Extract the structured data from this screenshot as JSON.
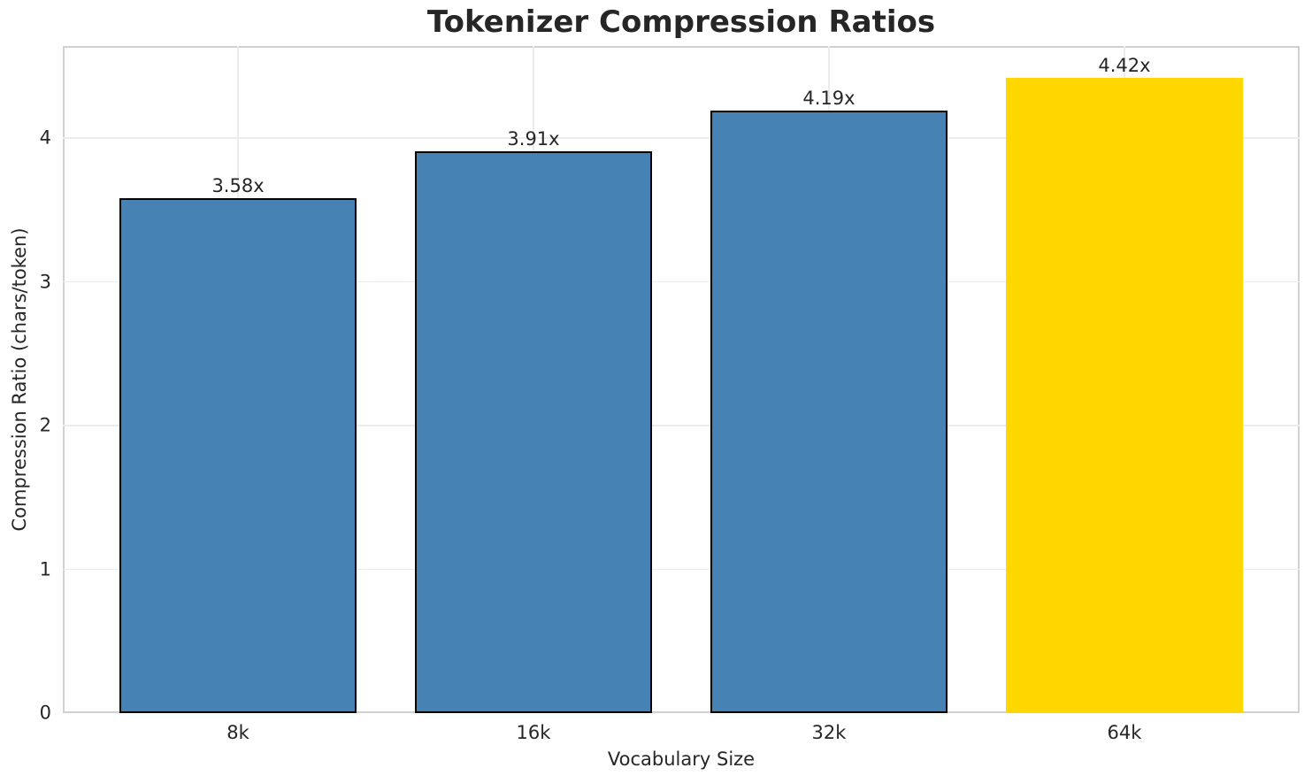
{
  "chart_data": {
    "type": "bar",
    "title": "Tokenizer Compression Ratios",
    "xlabel": "Vocabulary Size",
    "ylabel": "Compression Ratio (chars/token)",
    "categories": [
      "8k",
      "16k",
      "32k",
      "64k"
    ],
    "values": [
      3.58,
      3.91,
      4.19,
      4.42
    ],
    "bar_labels": [
      "3.58x",
      "3.91x",
      "4.19x",
      "4.42x"
    ],
    "highlight_index": 3,
    "ylim": [
      0,
      4.64
    ],
    "yticks": [
      0,
      1,
      2,
      3,
      4
    ],
    "xlim": [
      -0.593,
      3.593
    ],
    "bar_width": 0.8,
    "grid": true,
    "legend_position": "none",
    "colors": {
      "bar": "#4682B4",
      "highlight_bar": "#FFD700",
      "bar_edge": "#000000",
      "grid_line": "#ececec",
      "spine": "#d0d0d0",
      "text": "#262626",
      "background": "#ffffff"
    }
  }
}
